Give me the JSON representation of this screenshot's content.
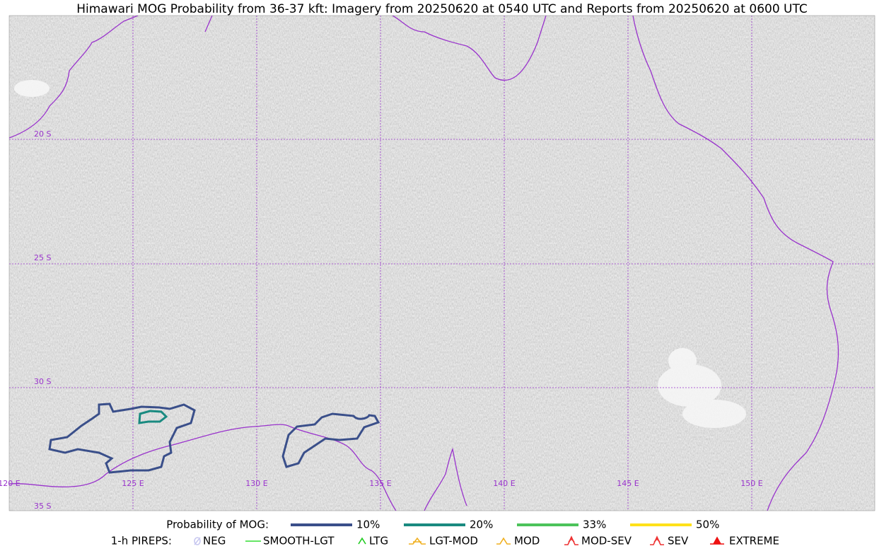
{
  "title": "Himawari MOG Probability from 36-37 kft: Imagery from 20250620 at 0540 UTC and Reports from 20250620 at 0600 UTC",
  "lat_labels": [
    "20 S",
    "25 S",
    "30 S",
    "35 S"
  ],
  "lon_labels": [
    "120 E",
    "125 E",
    "130 E",
    "135 E",
    "140 E",
    "145 E",
    "150 E"
  ],
  "legend": {
    "probability_title": "Probability of MOG:",
    "probability_items": [
      {
        "label": "10%",
        "color": "#3a4f8a"
      },
      {
        "label": "20%",
        "color": "#1a8a80"
      },
      {
        "label": "33%",
        "color": "#4cc35a"
      },
      {
        "label": "50%",
        "color": "#ffe119"
      }
    ],
    "pireps_title": "1-h PIREPS:",
    "pirep_items": [
      {
        "label": "NEG",
        "color": "#c8c8f0"
      },
      {
        "label": "SMOOTH-LGT",
        "color": "#33dd33"
      },
      {
        "label": "LTG",
        "color": "#22cc22"
      },
      {
        "label": "LGT-MOD",
        "color": "#f0b020"
      },
      {
        "label": "MOD",
        "color": "#f0b020"
      },
      {
        "label": "MOD-SEV",
        "color": "#ee3333"
      },
      {
        "label": "SEV",
        "color": "#ee3333"
      },
      {
        "label": "EXTREME",
        "color": "#ee1111"
      }
    ]
  }
}
